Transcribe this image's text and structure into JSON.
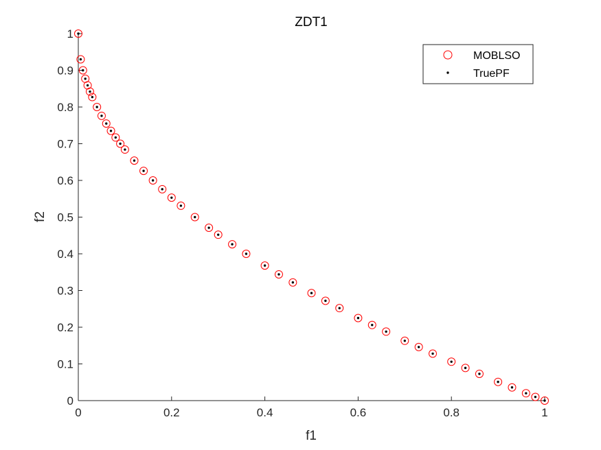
{
  "chart_data": {
    "type": "scatter",
    "title": "ZDT1",
    "xlabel": "f1",
    "ylabel": "f2",
    "xlim": [
      0,
      1
    ],
    "ylim": [
      0,
      1
    ],
    "xticks": [
      "0",
      "0.2",
      "0.4",
      "0.6",
      "0.8",
      "1"
    ],
    "yticks": [
      "0",
      "0.1",
      "0.2",
      "0.3",
      "0.4",
      "0.5",
      "0.6",
      "0.7",
      "0.8",
      "0.9",
      "1"
    ],
    "grid": false,
    "legend_position": "top-right",
    "x": [
      0.0,
      0.005,
      0.01,
      0.015,
      0.02,
      0.025,
      0.03,
      0.04,
      0.05,
      0.06,
      0.07,
      0.08,
      0.09,
      0.1,
      0.12,
      0.14,
      0.16,
      0.18,
      0.2,
      0.22,
      0.25,
      0.28,
      0.3,
      0.33,
      0.36,
      0.4,
      0.43,
      0.46,
      0.5,
      0.53,
      0.56,
      0.6,
      0.63,
      0.66,
      0.7,
      0.73,
      0.76,
      0.8,
      0.83,
      0.86,
      0.9,
      0.93,
      0.96,
      0.98,
      1.0
    ],
    "series": [
      {
        "name": "MOBLSO",
        "marker": "open-circle",
        "color": "#ff0000",
        "values": [
          1.0,
          0.93,
          0.9,
          0.877,
          0.859,
          0.842,
          0.827,
          0.8,
          0.776,
          0.755,
          0.735,
          0.717,
          0.7,
          0.684,
          0.654,
          0.626,
          0.6,
          0.576,
          0.553,
          0.531,
          0.5,
          0.471,
          0.452,
          0.426,
          0.4,
          0.368,
          0.344,
          0.322,
          0.293,
          0.272,
          0.252,
          0.225,
          0.206,
          0.188,
          0.163,
          0.146,
          0.128,
          0.106,
          0.089,
          0.073,
          0.051,
          0.036,
          0.02,
          0.01,
          0.0
        ]
      },
      {
        "name": "TruePF",
        "marker": "dot",
        "color": "#000000",
        "values": [
          1.0,
          0.93,
          0.9,
          0.877,
          0.859,
          0.842,
          0.827,
          0.8,
          0.776,
          0.755,
          0.735,
          0.717,
          0.7,
          0.684,
          0.654,
          0.626,
          0.6,
          0.576,
          0.553,
          0.531,
          0.5,
          0.471,
          0.452,
          0.426,
          0.4,
          0.368,
          0.344,
          0.322,
          0.293,
          0.272,
          0.252,
          0.225,
          0.206,
          0.188,
          0.163,
          0.146,
          0.128,
          0.106,
          0.089,
          0.073,
          0.051,
          0.036,
          0.02,
          0.01,
          0.0
        ]
      }
    ]
  }
}
